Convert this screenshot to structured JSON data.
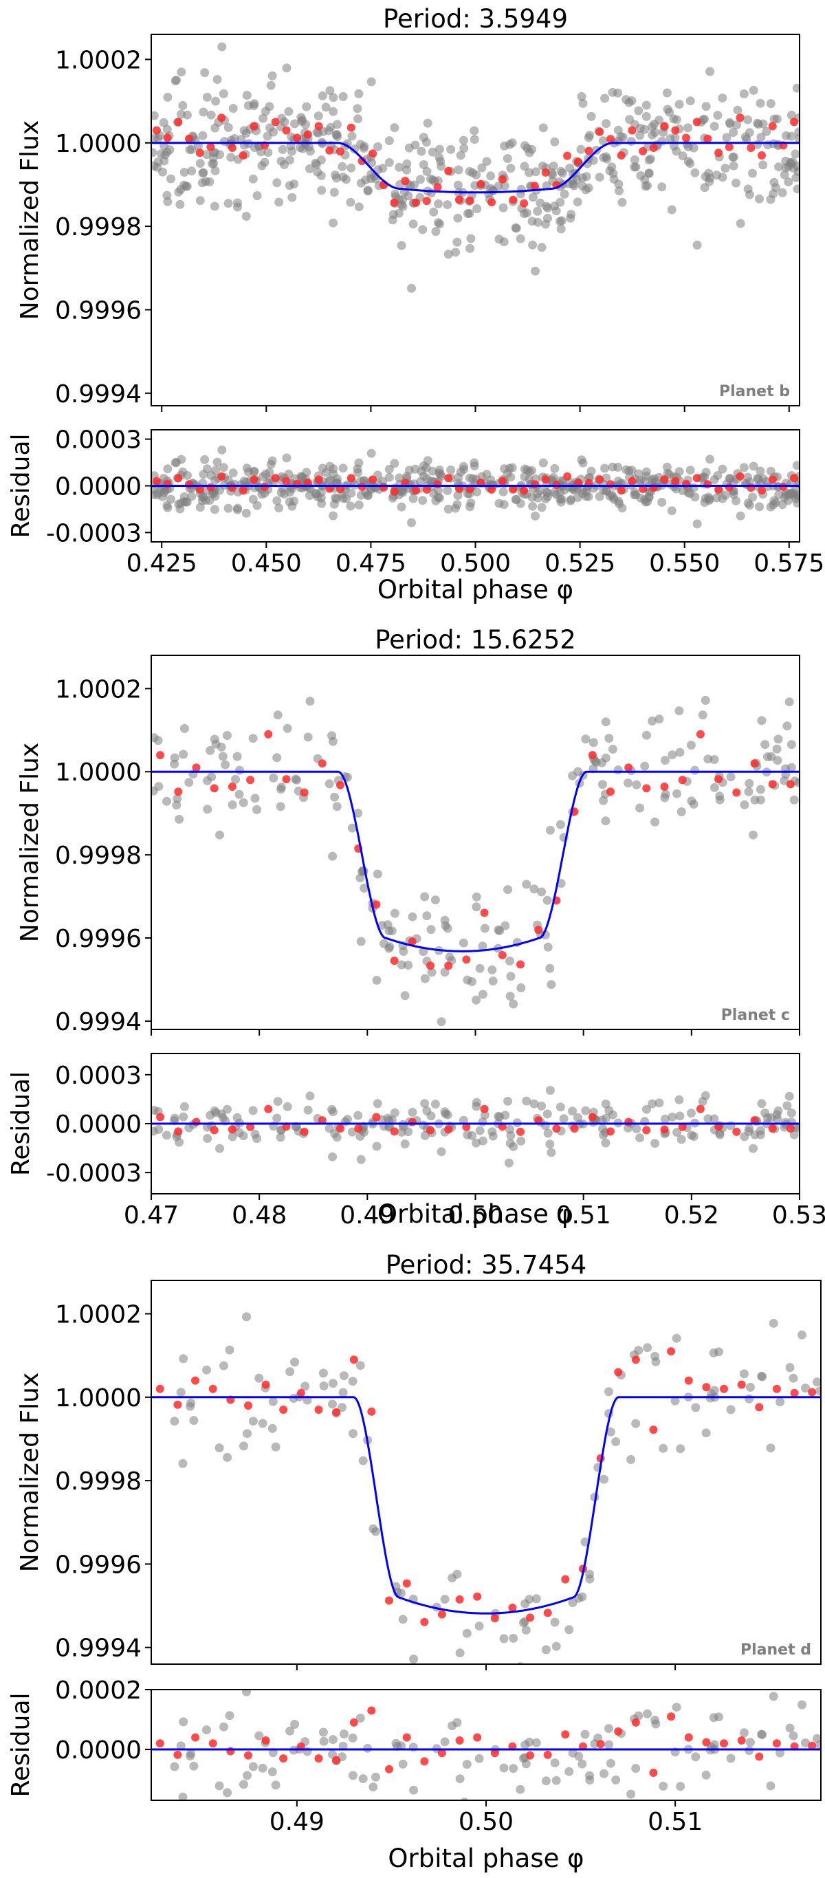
{
  "chart_data": [
    {
      "type": "scatter",
      "title": "Period: 3.5949",
      "planet_label": "Planet b",
      "xlabel": "Orbital phase φ",
      "ylabel": "Normalized Flux",
      "ylabel_residual": "Residual",
      "xlim": [
        0.4225,
        0.5775
      ],
      "ylim": [
        0.99937,
        1.00026
      ],
      "ylim_residual": [
        -0.00036,
        0.00036
      ],
      "xticks": [
        0.425,
        0.45,
        0.475,
        0.5,
        0.525,
        0.55,
        0.575
      ],
      "xtick_labels": [
        "0.425",
        "0.450",
        "0.475",
        "0.500",
        "0.525",
        "0.550",
        "0.575"
      ],
      "yticks": [
        0.9994,
        0.9996,
        0.9998,
        1.0,
        1.0002
      ],
      "ytick_labels": [
        "0.9994",
        "0.9996",
        "0.9998",
        "1.0000",
        "1.0002"
      ],
      "yticks_residual": [
        -0.0003,
        0.0,
        0.0003
      ],
      "ytick_labels_residual": [
        "-0.0003",
        "0.0000",
        "0.0003"
      ],
      "model": {
        "center": 0.5,
        "depth": 0.00011,
        "half_width": 0.0255,
        "ingress": 0.0075
      },
      "series": [
        {
          "name": "",
          "role": "data",
          "color": "#808080",
          "scatter_sd": 7e-05,
          "count": 560
        },
        {
          "name": "",
          "role": "binned",
          "color": "#ff2a2a",
          "count": 60,
          "offsets": [
            3e-05,
            -2e-05,
            5e-05,
            1e-05,
            4e-05,
            -1e-05,
            6e-05,
            2e-05,
            -3e-05,
            4e-05,
            1e-05,
            5e-05,
            3e-05,
            -2e-05,
            2e-05,
            4e-05
          ]
        },
        {
          "name": "",
          "role": "model",
          "color": "#0000ff"
        }
      ]
    },
    {
      "type": "scatter",
      "title": "Period: 15.6252",
      "planet_label": "Planet c",
      "xlabel": "Orbital phase φ",
      "ylabel": "Normalized Flux",
      "ylabel_residual": "Residual",
      "xlim": [
        0.47,
        0.53
      ],
      "ylim": [
        0.99938,
        1.00028
      ],
      "ylim_residual": [
        -0.00043,
        0.00043
      ],
      "xticks": [
        0.47,
        0.48,
        0.49,
        0.5,
        0.51,
        0.52,
        0.53
      ],
      "xtick_labels": [
        "0.47",
        "0.48",
        "0.49",
        "0.50",
        "0.51",
        "0.52",
        "0.53"
      ],
      "yticks": [
        0.9994,
        0.9996,
        0.9998,
        1.0,
        1.0002
      ],
      "ytick_labels": [
        "0.9994",
        "0.9996",
        "0.9998",
        "1.0000",
        "1.0002"
      ],
      "yticks_residual": [
        -0.0003,
        0.0,
        0.0003
      ],
      "ytick_labels_residual": [
        "-0.0003",
        "0.0000",
        "0.0003"
      ],
      "model": {
        "center": 0.4988,
        "depth": 0.0004,
        "half_width": 0.0093,
        "ingress": 0.0022
      },
      "series": [
        {
          "name": "",
          "role": "data",
          "color": "#808080",
          "scatter_sd": 8e-05,
          "count": 220
        },
        {
          "name": "",
          "role": "binned",
          "color": "#ff2a2a",
          "count": 36,
          "offsets": [
            4e-05,
            8e-05,
            1e-05,
            -4e-05,
            6e-05,
            -2e-05,
            9e-05,
            3e-05,
            -5e-05,
            2e-05,
            5e-05,
            -3e-05
          ]
        },
        {
          "name": "",
          "role": "model",
          "color": "#0000ff"
        }
      ]
    },
    {
      "type": "scatter",
      "title": "Period: 35.7454",
      "planet_label": "Planet d",
      "xlabel": "Orbital phase φ",
      "ylabel": "Normalized Flux",
      "ylabel_residual": "Residual",
      "xlim": [
        0.4823,
        0.5177
      ],
      "ylim": [
        0.99936,
        1.00028
      ],
      "ylim_residual": [
        -0.00017,
        0.0002
      ],
      "xticks": [
        0.49,
        0.5,
        0.51
      ],
      "xtick_labels": [
        "0.49",
        "0.50",
        "0.51"
      ],
      "yticks": [
        0.9994,
        0.9996,
        0.9998,
        1.0,
        1.0002
      ],
      "ytick_labels": [
        "0.9994",
        "0.9996",
        "0.9998",
        "1.0000",
        "1.0002"
      ],
      "yticks_residual": [
        0.0,
        0.0002
      ],
      "ytick_labels_residual": [
        "0.0000",
        "0.0002"
      ],
      "model": {
        "center": 0.5,
        "depth": 0.00048,
        "half_width": 0.0058,
        "ingress": 0.0012
      },
      "series": [
        {
          "name": "",
          "role": "data",
          "color": "#808080",
          "scatter_sd": 8e-05,
          "count": 120
        },
        {
          "name": "",
          "role": "binned",
          "color": "#ff2a2a",
          "count": 38,
          "offsets": [
            2e-05,
            3e-05,
            4e-05,
            2e-05,
            1e-05,
            -2e-05,
            3e-05,
            5e-05,
            1e-05,
            -3e-05,
            6e-05,
            9e-05,
            0.00013,
            0.00011,
            4e-05,
            -4e-05
          ]
        },
        {
          "name": "",
          "role": "model",
          "color": "#0000ff"
        }
      ]
    }
  ]
}
